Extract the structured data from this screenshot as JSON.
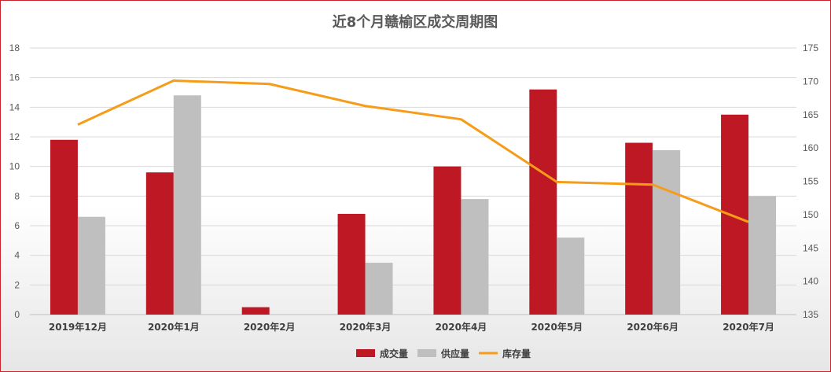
{
  "chart_data": {
    "type": "bar",
    "title": "近8个月赣榆区成交周期图",
    "categories": [
      "2019年12月",
      "2020年1月",
      "2020年2月",
      "2020年3月",
      "2020年4月",
      "2020年5月",
      "2020年6月",
      "2020年7月"
    ],
    "series": [
      {
        "name": "成交量",
        "type": "bar",
        "axis": "left",
        "color": "#be1824",
        "values": [
          11.8,
          9.6,
          0.5,
          6.8,
          10.0,
          15.2,
          11.6,
          13.5
        ]
      },
      {
        "name": "供应量",
        "type": "bar",
        "axis": "left",
        "color": "#bfbfbf",
        "values": [
          6.6,
          14.8,
          0,
          3.5,
          7.8,
          5.2,
          11.1,
          8.0
        ]
      },
      {
        "name": "库存量",
        "type": "line",
        "axis": "right",
        "color": "#f59d1b",
        "values": [
          163.5,
          170.1,
          169.6,
          166.3,
          164.3,
          154.9,
          154.5,
          148.9
        ]
      }
    ],
    "yleft": {
      "min": 0,
      "max": 18,
      "step": 2,
      "ticks": [
        "0",
        "2",
        "4",
        "6",
        "8",
        "10",
        "12",
        "14",
        "16",
        "18"
      ]
    },
    "yright": {
      "min": 135,
      "max": 175,
      "step": 5,
      "ticks": [
        "135",
        "140",
        "145",
        "150",
        "155",
        "160",
        "165",
        "170",
        "175"
      ]
    },
    "grid": true,
    "legend_position": "bottom"
  }
}
